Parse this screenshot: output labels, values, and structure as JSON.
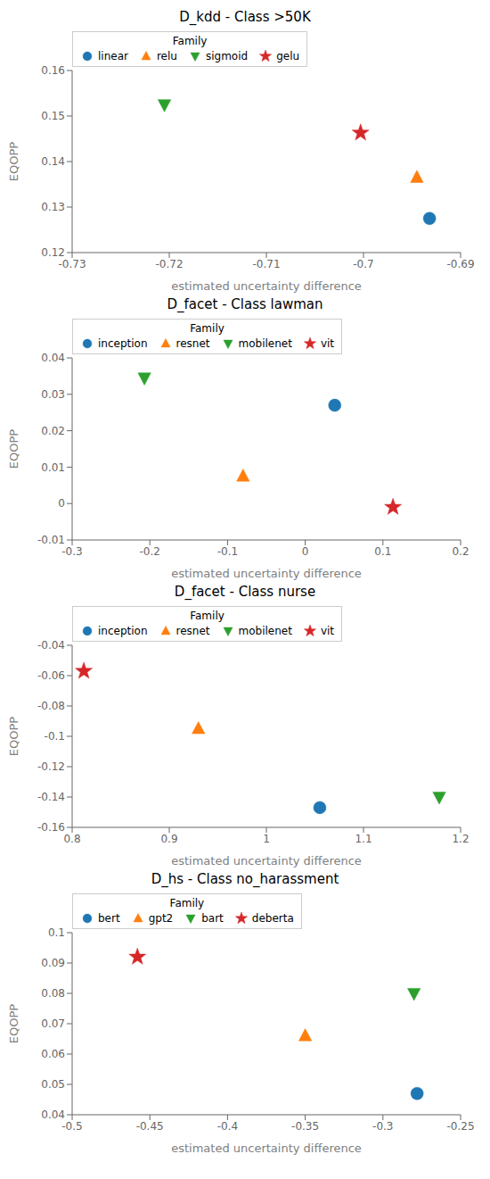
{
  "chart_data": [
    {
      "type": "scatter",
      "title": "D_kdd - Class >50K",
      "x_label": "estimated uncertainty difference",
      "y_label": "EQOPP",
      "legend_title": "Family",
      "legend": "upper left",
      "grid": false,
      "xlim": [
        -0.73,
        -0.69
      ],
      "xticks": [
        -0.73,
        -0.72,
        -0.71,
        -0.7,
        -0.69
      ],
      "ylim": [
        0.12,
        0.16
      ],
      "yticks": [
        0.12,
        0.13,
        0.14,
        0.15,
        0.16
      ],
      "series": [
        {
          "name": "linear",
          "color": "#1f77b4",
          "marker": "o",
          "x": [
            -0.6932
          ],
          "y": [
            0.1275
          ]
        },
        {
          "name": "relu",
          "color": "#ff7f0e",
          "marker": "^",
          "x": [
            -0.6945
          ],
          "y": [
            0.1365
          ]
        },
        {
          "name": "sigmoid",
          "color": "#2ca02c",
          "marker": "v",
          "x": [
            -0.7205
          ],
          "y": [
            0.1525
          ]
        },
        {
          "name": "gelu",
          "color": "#d62728",
          "marker": "*",
          "x": [
            -0.7003
          ],
          "y": [
            0.1463
          ]
        }
      ]
    },
    {
      "type": "scatter",
      "title": "D_facet - Class lawman",
      "x_label": "estimated uncertainty difference",
      "y_label": "EQOPP",
      "legend_title": "Family",
      "legend": "upper left",
      "grid": false,
      "xlim": [
        -0.3,
        0.2
      ],
      "xticks": [
        -0.3,
        -0.2,
        -0.1,
        0,
        0.1,
        0.2
      ],
      "ylim": [
        -0.01,
        0.04
      ],
      "yticks": [
        -0.01,
        0,
        0.01,
        0.02,
        0.03,
        0.04
      ],
      "series": [
        {
          "name": "inception",
          "color": "#1f77b4",
          "marker": "o",
          "x": [
            0.038
          ],
          "y": [
            0.027
          ]
        },
        {
          "name": "resnet",
          "color": "#ff7f0e",
          "marker": "^",
          "x": [
            -0.08
          ],
          "y": [
            0.0075
          ]
        },
        {
          "name": "mobilenet",
          "color": "#2ca02c",
          "marker": "v",
          "x": [
            -0.207
          ],
          "y": [
            0.0345
          ]
        },
        {
          "name": "vit",
          "color": "#d62728",
          "marker": "*",
          "x": [
            0.113
          ],
          "y": [
            -0.001
          ]
        }
      ]
    },
    {
      "type": "scatter",
      "title": "D_facet - Class nurse",
      "x_label": "estimated uncertainty difference",
      "y_label": "EQOPP",
      "legend_title": "Family",
      "legend": "upper left",
      "grid": false,
      "xlim": [
        0.8,
        1.2
      ],
      "xticks": [
        0.8,
        0.9,
        1,
        1.1,
        1.2
      ],
      "ylim": [
        -0.16,
        -0.04
      ],
      "yticks": [
        -0.16,
        -0.14,
        -0.12,
        -0.1,
        -0.08,
        -0.06,
        -0.04
      ],
      "series": [
        {
          "name": "inception",
          "color": "#1f77b4",
          "marker": "o",
          "x": [
            1.055
          ],
          "y": [
            -0.147
          ]
        },
        {
          "name": "resnet",
          "color": "#ff7f0e",
          "marker": "^",
          "x": [
            0.93
          ],
          "y": [
            -0.095
          ]
        },
        {
          "name": "mobilenet",
          "color": "#2ca02c",
          "marker": "v",
          "x": [
            1.178
          ],
          "y": [
            -0.14
          ]
        },
        {
          "name": "vit",
          "color": "#d62728",
          "marker": "*",
          "x": [
            0.812
          ],
          "y": [
            -0.057
          ]
        }
      ]
    },
    {
      "type": "scatter",
      "title": "D_hs - Class no_harassment",
      "x_label": "estimated uncertainty difference",
      "y_label": "EQOPP",
      "legend_title": "Family",
      "legend": "upper left",
      "grid": false,
      "xlim": [
        -0.5,
        -0.25
      ],
      "xticks": [
        -0.5,
        -0.45,
        -0.4,
        -0.35,
        -0.3,
        -0.25
      ],
      "ylim": [
        0.04,
        0.1
      ],
      "yticks": [
        0.04,
        0.05,
        0.06,
        0.07,
        0.08,
        0.09,
        0.1
      ],
      "series": [
        {
          "name": "bert",
          "color": "#1f77b4",
          "marker": "o",
          "x": [
            -0.278
          ],
          "y": [
            0.047
          ]
        },
        {
          "name": "gpt2",
          "color": "#ff7f0e",
          "marker": "^",
          "x": [
            -0.35
          ],
          "y": [
            0.066
          ]
        },
        {
          "name": "bart",
          "color": "#2ca02c",
          "marker": "v",
          "x": [
            -0.28
          ],
          "y": [
            0.08
          ]
        },
        {
          "name": "deberta",
          "color": "#d62728",
          "marker": "*",
          "x": [
            -0.458
          ],
          "y": [
            0.092
          ]
        }
      ]
    }
  ]
}
